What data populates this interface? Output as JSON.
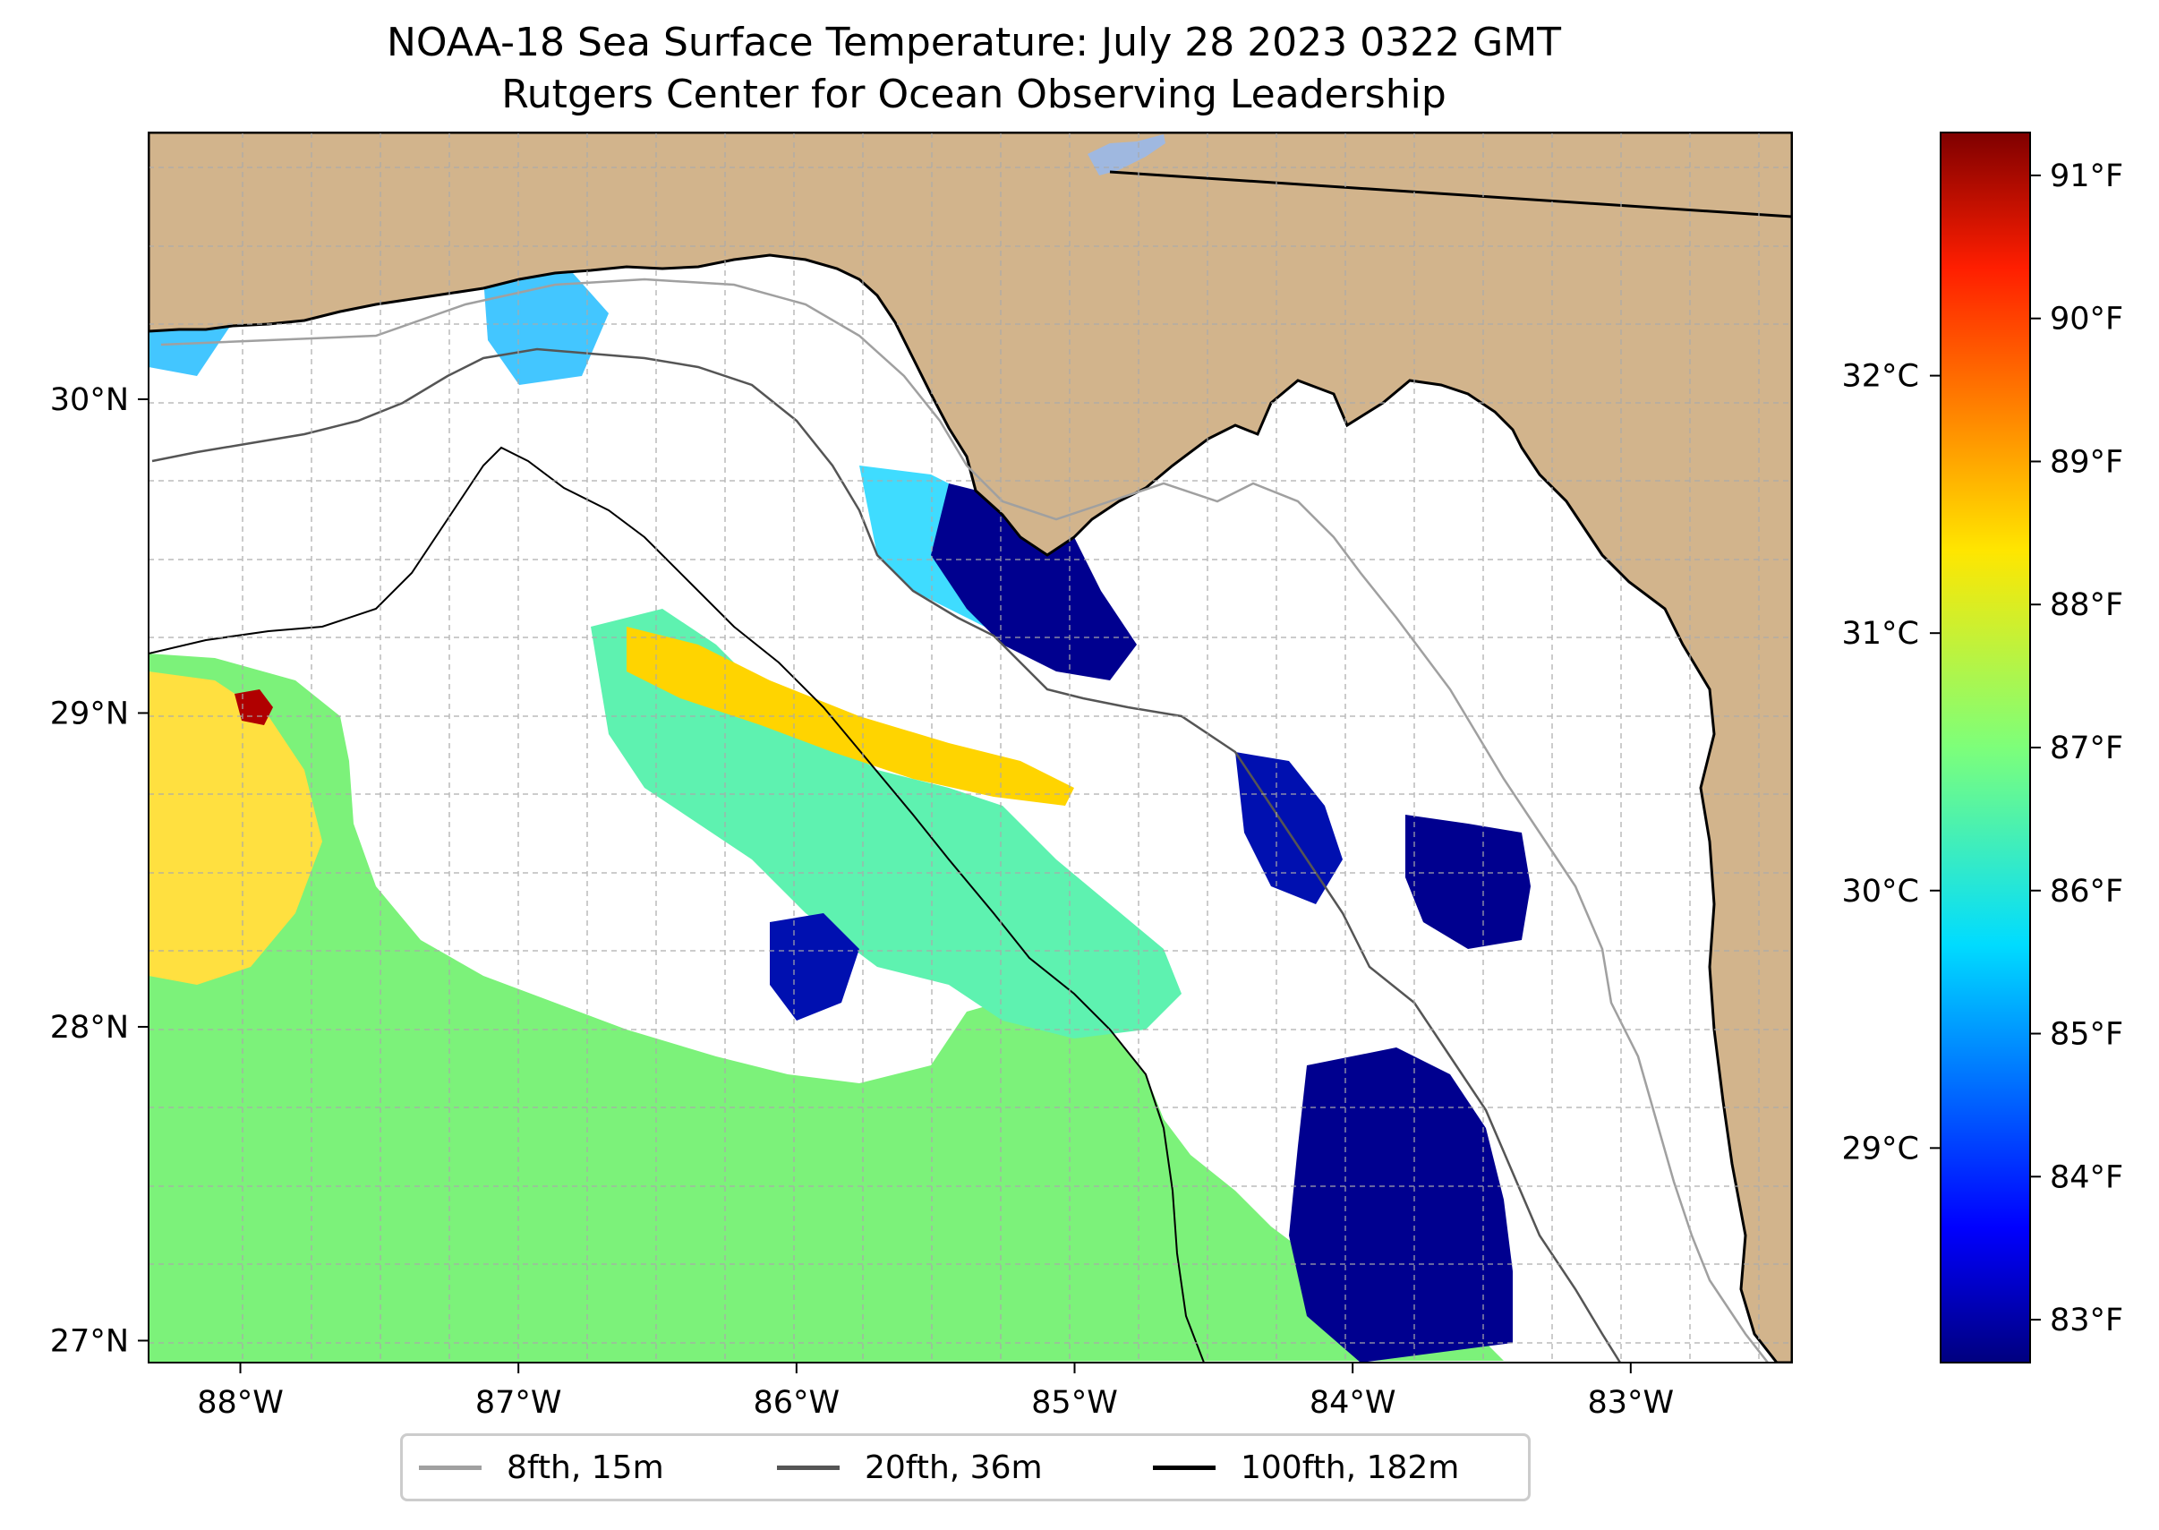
{
  "title": {
    "line1": "NOAA-18 Sea Surface Temperature: July 28 2023 0322 GMT",
    "line2": "Rutgers Center for Ocean Observing Leadership"
  },
  "map": {
    "extent": {
      "lon_min": -88.33,
      "lon_max": -82.42,
      "lat_min": 26.93,
      "lat_max": 30.85
    },
    "lon_ticks": [
      {
        "value": -88,
        "label": "88°W"
      },
      {
        "value": -87,
        "label": "87°W"
      },
      {
        "value": -86,
        "label": "86°W"
      },
      {
        "value": -85,
        "label": "85°W"
      },
      {
        "value": -84,
        "label": "84°W"
      },
      {
        "value": -83,
        "label": "83°W"
      }
    ],
    "lat_ticks": [
      {
        "value": 27,
        "label": "27°N"
      },
      {
        "value": 28,
        "label": "28°N"
      },
      {
        "value": 29,
        "label": "29°N"
      },
      {
        "value": 30,
        "label": "30°N"
      }
    ],
    "gridlines": true,
    "colors": {
      "land": "#d2b48c",
      "ocean_no_data": "#ffffff",
      "lake": "#9fb8e0",
      "coastline": "#000000",
      "gridline": "#aaaaaa"
    }
  },
  "colorbar": {
    "colormap": "jet",
    "f_range": [
      82.7,
      91.3
    ],
    "f_ticks": [
      {
        "value": 83,
        "label": "83°F"
      },
      {
        "value": 84,
        "label": "84°F"
      },
      {
        "value": 85,
        "label": "85°F"
      },
      {
        "value": 86,
        "label": "86°F"
      },
      {
        "value": 87,
        "label": "87°F"
      },
      {
        "value": 88,
        "label": "88°F"
      },
      {
        "value": 89,
        "label": "89°F"
      },
      {
        "value": 90,
        "label": "90°F"
      },
      {
        "value": 91,
        "label": "91°F"
      }
    ],
    "c_ticks": [
      {
        "value": 29,
        "label": "29°C"
      },
      {
        "value": 30,
        "label": "30°C"
      },
      {
        "value": 31,
        "label": "31°C"
      },
      {
        "value": 32,
        "label": "32°C"
      }
    ]
  },
  "legend": {
    "items": [
      {
        "label": "8fth, 15m",
        "color": "#a0a0a0"
      },
      {
        "label": "20fth, 36m",
        "color": "#555555"
      },
      {
        "label": "100fth, 182m",
        "color": "#000000"
      }
    ]
  }
}
